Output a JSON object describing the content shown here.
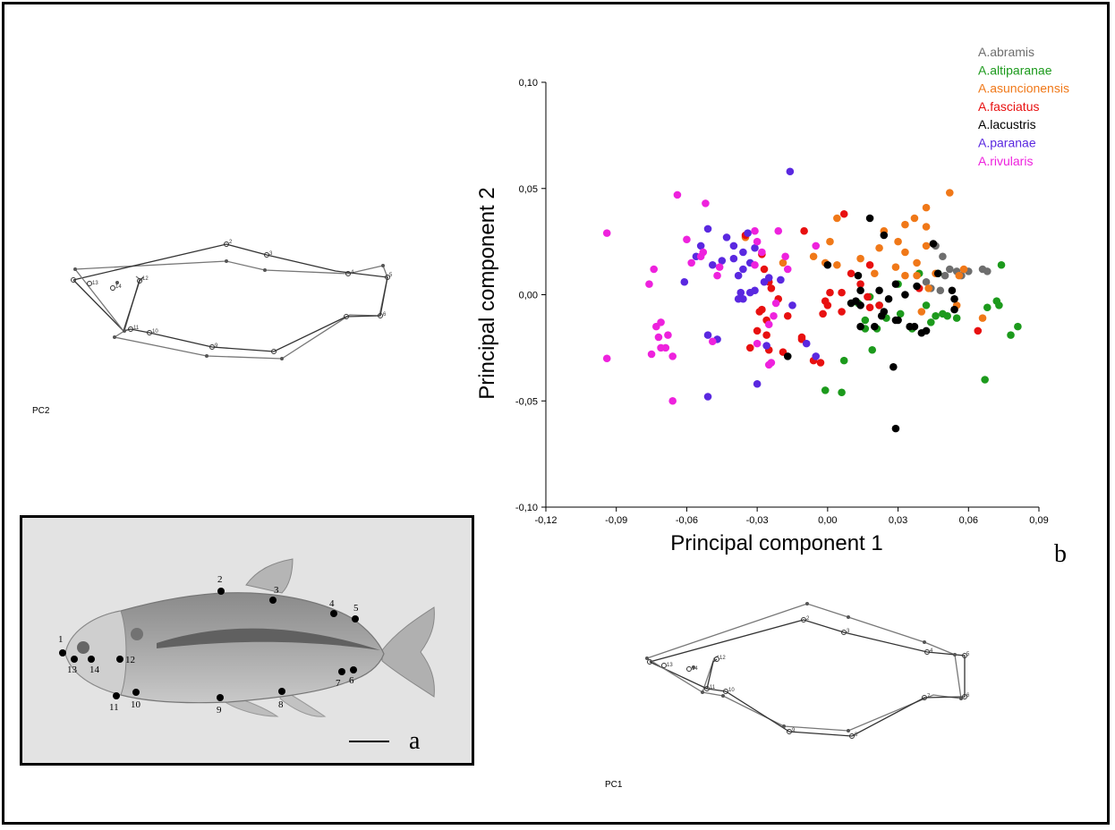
{
  "panel_b_label": "b",
  "panel_a_label": "a",
  "pc1_shape_label": "PC1",
  "pc2_shape_label": "PC2",
  "landmark_numbers": [
    "1",
    "2",
    "3",
    "4",
    "5",
    "6",
    "7",
    "8",
    "9",
    "10",
    "11",
    "12",
    "13",
    "14"
  ],
  "colors": {
    "A.abramis": "#6e6e6e",
    "A.altiparanae": "#1c9a1c",
    "A.asuncionensis": "#f07818",
    "A.fasciatus": "#e81010",
    "A.lacustris": "#000000",
    "A.paranae": "#5a28e0",
    "A.rivularis": "#ee22dd"
  },
  "chart_data": {
    "type": "scatter",
    "xlabel": "Principal component 1",
    "ylabel": "Principal component 2",
    "xlim": [
      -0.12,
      0.09
    ],
    "ylim": [
      -0.1,
      0.1
    ],
    "xticks": [
      -0.12,
      -0.09,
      -0.06,
      -0.03,
      0.0,
      0.03,
      0.06,
      0.09
    ],
    "yticks": [
      -0.1,
      -0.05,
      0.0,
      0.05,
      0.1
    ],
    "xtick_labels": [
      "-0,12",
      "-0,09",
      "-0,06",
      "-0,03",
      "0,00",
      "0,03",
      "0,06",
      "0,09"
    ],
    "ytick_labels": [
      "-0,10",
      "-0,05",
      "0,00",
      "0,05",
      "0,10"
    ],
    "legend_position": "top-right",
    "grid": false,
    "series": [
      {
        "name": "A.abramis",
        "points": [
          [
            0.046,
            0.023
          ],
          [
            0.049,
            0.018
          ],
          [
            0.052,
            0.012
          ],
          [
            0.055,
            0.011
          ],
          [
            0.057,
            0.009
          ],
          [
            0.06,
            0.011
          ],
          [
            0.066,
            0.012
          ],
          [
            0.068,
            0.011
          ],
          [
            0.044,
            0.003
          ],
          [
            0.048,
            0.002
          ],
          [
            0.05,
            0.009
          ],
          [
            0.042,
            0.006
          ]
        ]
      },
      {
        "name": "A.altiparanae",
        "points": [
          [
            0.074,
            0.014
          ],
          [
            0.072,
            -0.003
          ],
          [
            0.073,
            -0.005
          ],
          [
            0.081,
            -0.015
          ],
          [
            0.078,
            -0.019
          ],
          [
            0.068,
            -0.006
          ],
          [
            0.067,
            -0.04
          ],
          [
            0.055,
            -0.011
          ],
          [
            0.049,
            -0.009
          ],
          [
            0.051,
            -0.01
          ],
          [
            0.046,
            -0.01
          ],
          [
            0.047,
            0.01
          ],
          [
            0.044,
            -0.013
          ],
          [
            0.039,
            0.01
          ],
          [
            0.042,
            -0.005
          ],
          [
            0.036,
            -0.016
          ],
          [
            0.031,
            -0.009
          ],
          [
            0.025,
            -0.011
          ],
          [
            0.021,
            -0.016
          ],
          [
            0.019,
            -0.026
          ],
          [
            0.016,
            -0.012
          ],
          [
            0.016,
            -0.016
          ],
          [
            0.013,
            -0.004
          ],
          [
            0.01,
            -0.004
          ],
          [
            0.007,
            -0.031
          ],
          [
            0.006,
            -0.046
          ],
          [
            -0.001,
            -0.045
          ],
          [
            0.018,
            -0.001
          ],
          [
            0.022,
            -0.005
          ],
          [
            0.03,
            0.005
          ]
        ]
      },
      {
        "name": "A.asuncionensis",
        "points": [
          [
            0.052,
            0.048
          ],
          [
            0.042,
            0.041
          ],
          [
            0.037,
            0.036
          ],
          [
            0.042,
            0.032
          ],
          [
            0.033,
            0.033
          ],
          [
            0.024,
            0.03
          ],
          [
            0.004,
            0.036
          ],
          [
            0.001,
            0.025
          ],
          [
            -0.001,
            0.015
          ],
          [
            -0.006,
            0.018
          ],
          [
            0.004,
            0.014
          ],
          [
            0.014,
            0.017
          ],
          [
            0.022,
            0.022
          ],
          [
            0.033,
            0.02
          ],
          [
            0.042,
            0.023
          ],
          [
            0.038,
            0.015
          ],
          [
            0.033,
            0.009
          ],
          [
            0.038,
            0.009
          ],
          [
            0.043,
            0.003
          ],
          [
            0.056,
            0.009
          ],
          [
            0.058,
            0.012
          ],
          [
            0.029,
            0.013
          ],
          [
            0.04,
            -0.008
          ],
          [
            0.055,
            -0.005
          ],
          [
            0.066,
            -0.011
          ],
          [
            0.02,
            0.01
          ],
          [
            -0.019,
            0.015
          ],
          [
            -0.035,
            0.027
          ],
          [
            0.046,
            0.01
          ],
          [
            0.03,
            0.025
          ]
        ]
      },
      {
        "name": "A.fasciatus",
        "points": [
          [
            -0.035,
            0.028
          ],
          [
            -0.028,
            0.019
          ],
          [
            -0.027,
            0.012
          ],
          [
            -0.025,
            0.006
          ],
          [
            -0.024,
            0.003
          ],
          [
            -0.021,
            -0.002
          ],
          [
            -0.029,
            -0.008
          ],
          [
            -0.026,
            -0.012
          ],
          [
            -0.03,
            -0.017
          ],
          [
            -0.026,
            -0.019
          ],
          [
            -0.033,
            -0.025
          ],
          [
            -0.025,
            -0.026
          ],
          [
            -0.019,
            -0.027
          ],
          [
            -0.017,
            -0.01
          ],
          [
            -0.011,
            -0.02
          ],
          [
            -0.006,
            -0.031
          ],
          [
            -0.003,
            -0.032
          ],
          [
            0.0,
            -0.005
          ],
          [
            -0.002,
            -0.009
          ],
          [
            0.001,
            0.001
          ],
          [
            -0.001,
            -0.003
          ],
          [
            -0.01,
            0.03
          ],
          [
            0.006,
            0.001
          ],
          [
            0.006,
            -0.008
          ],
          [
            0.007,
            0.038
          ],
          [
            0.01,
            0.01
          ],
          [
            0.014,
            0.005
          ],
          [
            0.018,
            -0.006
          ],
          [
            0.018,
            0.014
          ],
          [
            0.022,
            -0.005
          ],
          [
            0.039,
            0.003
          ],
          [
            0.064,
            -0.017
          ],
          [
            -0.028,
            -0.007
          ],
          [
            -0.011,
            -0.021
          ],
          [
            0.017,
            -0.001
          ]
        ]
      },
      {
        "name": "A.lacustris",
        "points": [
          [
            0.018,
            0.036
          ],
          [
            0.024,
            0.028
          ],
          [
            0.026,
            -0.002
          ],
          [
            0.022,
            0.002
          ],
          [
            0.013,
            0.009
          ],
          [
            0.012,
            -0.003
          ],
          [
            0.014,
            -0.005
          ],
          [
            0.014,
            0.002
          ],
          [
            0.01,
            -0.004
          ],
          [
            0.014,
            -0.015
          ],
          [
            0.024,
            -0.008
          ],
          [
            0.02,
            -0.015
          ],
          [
            0.029,
            -0.012
          ],
          [
            0.03,
            -0.012
          ],
          [
            0.028,
            -0.034
          ],
          [
            0.029,
            -0.063
          ],
          [
            0.035,
            -0.015
          ],
          [
            0.037,
            -0.015
          ],
          [
            0.04,
            -0.018
          ],
          [
            0.042,
            -0.017
          ],
          [
            0.045,
            0.024
          ],
          [
            0.053,
            0.002
          ],
          [
            0.054,
            -0.002
          ],
          [
            0.054,
            -0.007
          ],
          [
            0.047,
            0.01
          ],
          [
            0.038,
            0.004
          ],
          [
            0.023,
            -0.01
          ],
          [
            -0.017,
            -0.029
          ],
          [
            0.0,
            0.014
          ],
          [
            0.029,
            0.005
          ],
          [
            0.033,
            0.0
          ]
        ]
      },
      {
        "name": "A.paranae",
        "points": [
          [
            -0.016,
            0.058
          ],
          [
            -0.051,
            0.031
          ],
          [
            -0.054,
            0.023
          ],
          [
            -0.056,
            0.018
          ],
          [
            -0.061,
            0.006
          ],
          [
            -0.049,
            0.014
          ],
          [
            -0.045,
            0.016
          ],
          [
            -0.043,
            0.027
          ],
          [
            -0.04,
            0.017
          ],
          [
            -0.04,
            0.023
          ],
          [
            -0.038,
            0.009
          ],
          [
            -0.036,
            0.02
          ],
          [
            -0.036,
            0.012
          ],
          [
            -0.034,
            0.029
          ],
          [
            -0.033,
            0.001
          ],
          [
            -0.036,
            -0.002
          ],
          [
            -0.038,
            -0.002
          ],
          [
            -0.037,
            0.001
          ],
          [
            -0.031,
            0.022
          ],
          [
            -0.031,
            0.002
          ],
          [
            -0.027,
            0.006
          ],
          [
            -0.025,
            0.008
          ],
          [
            -0.02,
            0.007
          ],
          [
            -0.015,
            -0.005
          ],
          [
            -0.026,
            -0.024
          ],
          [
            -0.03,
            -0.042
          ],
          [
            -0.051,
            -0.048
          ],
          [
            -0.051,
            -0.019
          ],
          [
            -0.047,
            -0.021
          ],
          [
            -0.009,
            -0.023
          ],
          [
            -0.005,
            -0.029
          ],
          [
            -0.033,
            0.015
          ]
        ]
      },
      {
        "name": "A.rivularis",
        "points": [
          [
            -0.094,
            0.029
          ],
          [
            -0.094,
            -0.03
          ],
          [
            -0.074,
            0.012
          ],
          [
            -0.076,
            0.005
          ],
          [
            -0.073,
            -0.015
          ],
          [
            -0.071,
            -0.013
          ],
          [
            -0.072,
            -0.02
          ],
          [
            -0.071,
            -0.025
          ],
          [
            -0.068,
            -0.019
          ],
          [
            -0.069,
            -0.025
          ],
          [
            -0.066,
            -0.029
          ],
          [
            -0.075,
            -0.028
          ],
          [
            -0.064,
            0.047
          ],
          [
            -0.052,
            0.043
          ],
          [
            -0.06,
            0.026
          ],
          [
            -0.058,
            0.015
          ],
          [
            -0.054,
            0.018
          ],
          [
            -0.049,
            -0.022
          ],
          [
            -0.066,
            -0.05
          ],
          [
            -0.053,
            0.02
          ],
          [
            -0.046,
            0.013
          ],
          [
            -0.047,
            0.009
          ],
          [
            -0.031,
            0.03
          ],
          [
            -0.03,
            0.025
          ],
          [
            -0.028,
            0.02
          ],
          [
            -0.031,
            0.014
          ],
          [
            -0.024,
            -0.032
          ],
          [
            -0.025,
            -0.033
          ],
          [
            -0.022,
            -0.004
          ],
          [
            -0.021,
            0.03
          ],
          [
            -0.018,
            0.018
          ],
          [
            -0.017,
            0.012
          ],
          [
            -0.005,
            0.023
          ],
          [
            -0.025,
            -0.014
          ],
          [
            -0.023,
            -0.01
          ],
          [
            -0.03,
            -0.023
          ]
        ]
      }
    ]
  }
}
